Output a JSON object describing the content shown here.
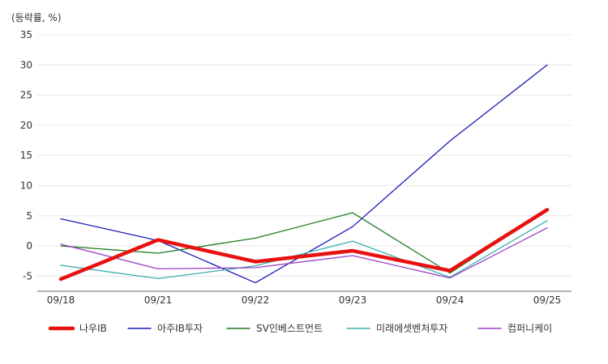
{
  "chart_data": {
    "type": "line",
    "unit_label": "(등락률, %)",
    "categories": [
      "09/18",
      "09/21",
      "09/22",
      "09/23",
      "09/24",
      "09/25"
    ],
    "ylim": [
      -7.5,
      35
    ],
    "yticks": [
      35,
      30,
      25,
      20,
      15,
      10,
      5,
      0,
      -5
    ],
    "grid": true,
    "legend_position": "bottom",
    "series": [
      {
        "name": "나우IB",
        "color": "#e8110f",
        "width": 4.5,
        "values": [
          -5.5,
          1.0,
          -2.6,
          -0.8,
          -4.1,
          6.0
        ]
      },
      {
        "name": "아주IB투자",
        "color": "#1a1ab8",
        "width": 1.3,
        "values": [
          4.5,
          0.9,
          -6.1,
          3.2,
          17.4,
          30.0
        ]
      },
      {
        "name": "SV인베스트먼트",
        "color": "#1f7a1f",
        "width": 1.3,
        "values": [
          0.0,
          -1.2,
          1.3,
          5.5,
          -4.5,
          5.9
        ]
      },
      {
        "name": "미래에셋벤처투자",
        "color": "#3ab0b0",
        "width": 1.3,
        "values": [
          -3.2,
          -5.4,
          -3.3,
          0.8,
          -5.2,
          4.2
        ]
      },
      {
        "name": "컴퍼니케이",
        "color": "#9a3ec8",
        "width": 1.3,
        "values": [
          0.3,
          -3.8,
          -3.6,
          -1.6,
          -5.3,
          3.0
        ]
      }
    ]
  }
}
